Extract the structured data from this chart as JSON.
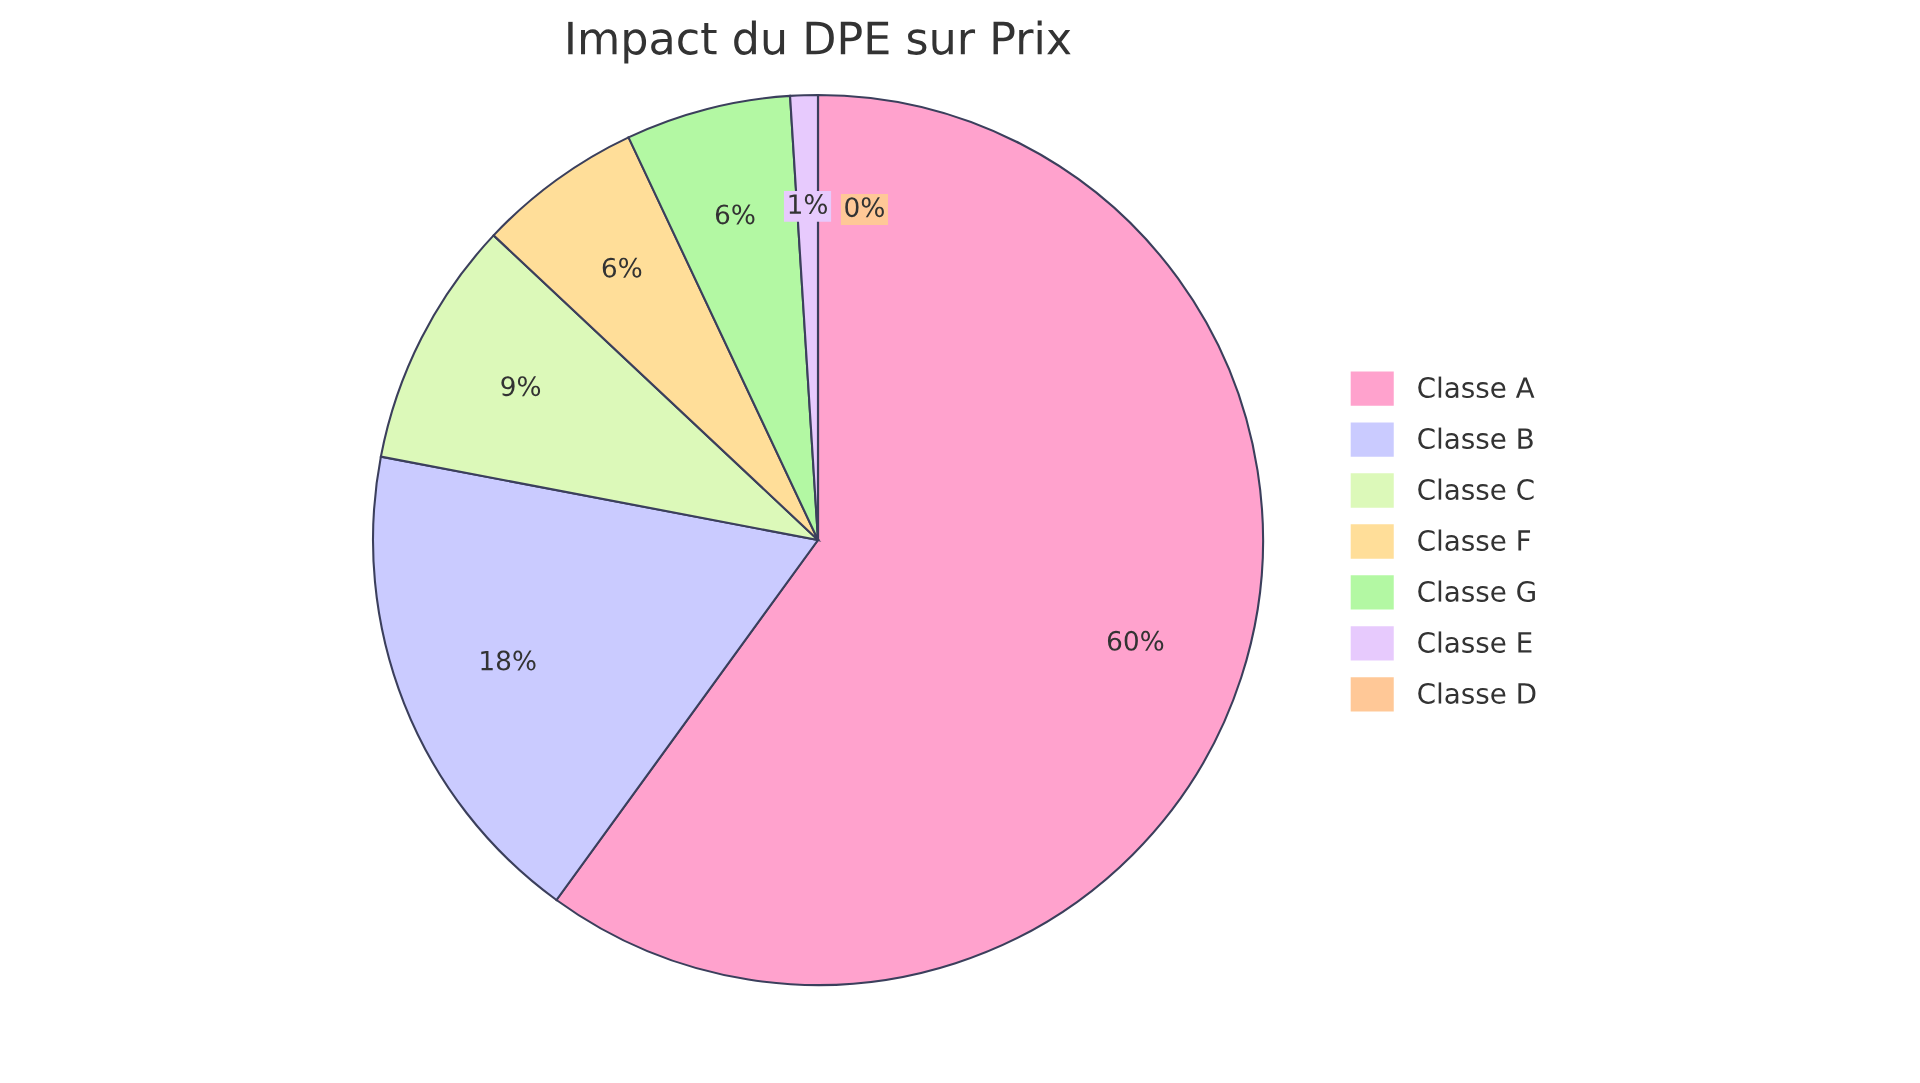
{
  "chart_data": {
    "type": "pie",
    "title": "Impact du DPE sur Prix",
    "categories": [
      "Classe A",
      "Classe B",
      "Classe C",
      "Classe F",
      "Classe G",
      "Classe E",
      "Classe D"
    ],
    "values": [
      60,
      18,
      9,
      6,
      6,
      1,
      0
    ],
    "value_labels": [
      "60%",
      "18%",
      "9%",
      "6%",
      "6%",
      "1%",
      "0%"
    ],
    "colors": [
      "#ffa2cd",
      "#cacbff",
      "#dcf9b9",
      "#ffde99",
      "#b3f8a3",
      "#e7cafd",
      "#ffc897"
    ],
    "legend": "right"
  }
}
